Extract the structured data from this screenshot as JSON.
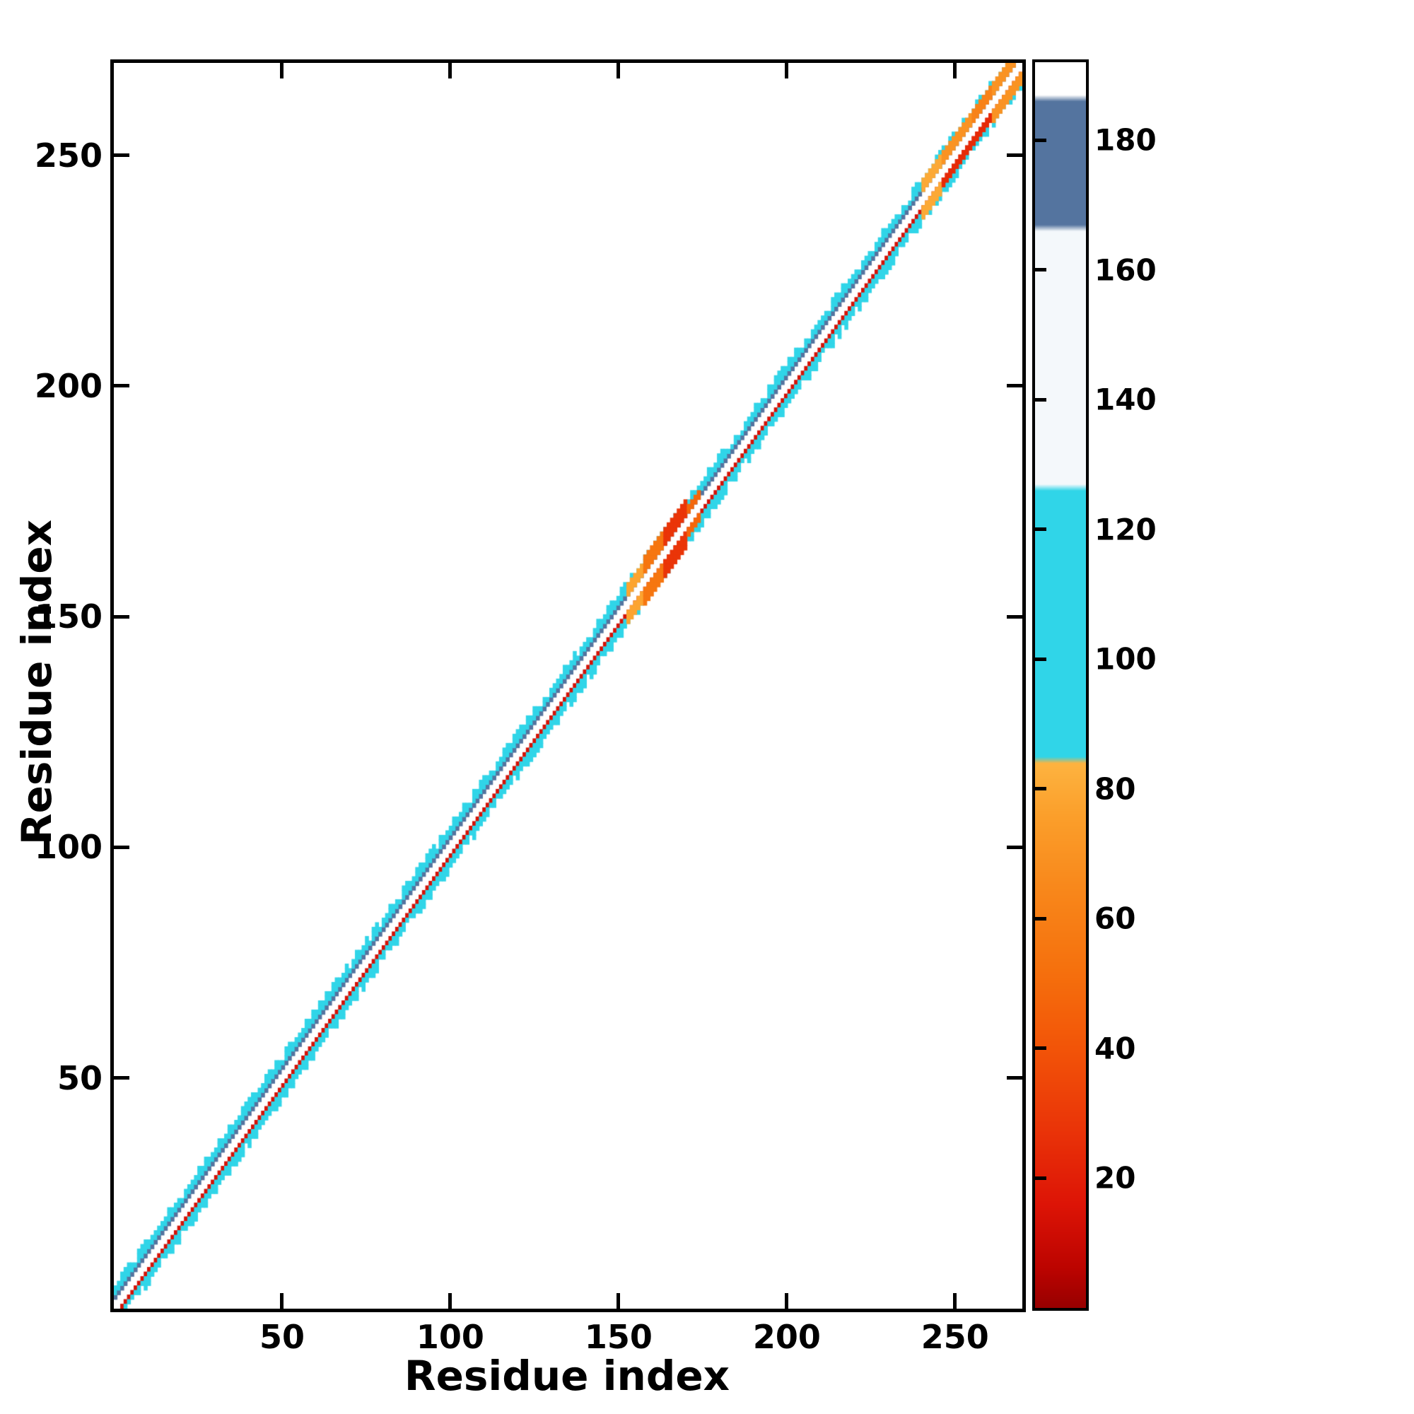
{
  "chart_data": {
    "type": "heatmap",
    "title": "",
    "xlabel": "Residue index",
    "ylabel": "Residue index",
    "x_range": [
      0,
      270
    ],
    "y_range": [
      0,
      270
    ],
    "x_ticks": [
      50,
      100,
      150,
      200,
      250
    ],
    "y_ticks": [
      50,
      100,
      150,
      200,
      250
    ],
    "grid": false,
    "background_value_color": "#ffffff",
    "description": "Protein residue-residue contact map. Contacts form a narrow band along the main diagonal: a cyan band (value ~100) flanks the diagonal on both sides, a dark slate-blue line (value ~176) runs just above the diagonal at sequence offset +2, and a red line (value ~14) runs just below the diagonal at offset -2. The exact diagonal (|i-j|<=1) is empty/white. Red-orange patches interrupt the cyan band near residues 155-175 and near residues 240-270 in the upper right corner.",
    "band": {
      "diagonal_gap_offsets": 1,
      "above_line": {
        "offset": 2,
        "value": 176
      },
      "above_band": {
        "offsets": [
          3,
          4
        ],
        "value": 102
      },
      "below_line": {
        "offset": 2,
        "value": 14
      },
      "below_band": {
        "offsets": [
          3,
          4
        ],
        "value": 102
      }
    },
    "anomalies": [
      {
        "from": 153,
        "to": 158,
        "side": "both",
        "offsets": [
          2,
          4
        ],
        "value": 78
      },
      {
        "from": 158,
        "to": 164,
        "side": "both",
        "offsets": [
          2,
          5
        ],
        "value": 55
      },
      {
        "from": 164,
        "to": 171,
        "side": "both",
        "offsets": [
          2,
          5
        ],
        "value": 28
      },
      {
        "from": 171,
        "to": 175,
        "side": "both",
        "offsets": [
          2,
          3
        ],
        "value": 48
      },
      {
        "from": 241,
        "to": 247,
        "side": "both",
        "offsets": [
          2,
          4
        ],
        "value": 80
      },
      {
        "from": 247,
        "to": 256,
        "side": "above",
        "offsets": [
          2,
          4
        ],
        "value": 70
      },
      {
        "from": 247,
        "to": 256,
        "side": "below",
        "offsets": [
          2,
          3
        ],
        "value": 24
      },
      {
        "from": 256,
        "to": 262,
        "side": "above",
        "offsets": [
          2,
          4
        ],
        "value": 62
      },
      {
        "from": 256,
        "to": 262,
        "side": "below",
        "offsets": [
          2,
          3
        ],
        "value": 24
      },
      {
        "from": 262,
        "to": 271,
        "side": "both",
        "offsets": [
          2,
          4
        ],
        "value": 70
      }
    ],
    "colorbar": {
      "range": [
        0,
        192
      ],
      "ticks": [
        20,
        40,
        60,
        80,
        100,
        120,
        140,
        160,
        180
      ],
      "position": "right",
      "stops": [
        {
          "v": 0,
          "c": "#970000"
        },
        {
          "v": 6,
          "c": "#bb0300"
        },
        {
          "v": 16,
          "c": "#dd1406"
        },
        {
          "v": 28,
          "c": "#ea3508"
        },
        {
          "v": 40,
          "c": "#f25408"
        },
        {
          "v": 52,
          "c": "#f5700d"
        },
        {
          "v": 64,
          "c": "#f8861a"
        },
        {
          "v": 76,
          "c": "#fb9f2b"
        },
        {
          "v": 84,
          "c": "#fdb340"
        },
        {
          "v": 85,
          "c": "#30d5e8"
        },
        {
          "v": 126,
          "c": "#30d5e8"
        },
        {
          "v": 127,
          "c": "#f4f8fb"
        },
        {
          "v": 166,
          "c": "#f4f8fb"
        },
        {
          "v": 167,
          "c": "#54749f"
        },
        {
          "v": 186,
          "c": "#54749f"
        },
        {
          "v": 187,
          "c": "#ffffff"
        },
        {
          "v": 192,
          "c": "#ffffff"
        }
      ]
    }
  }
}
